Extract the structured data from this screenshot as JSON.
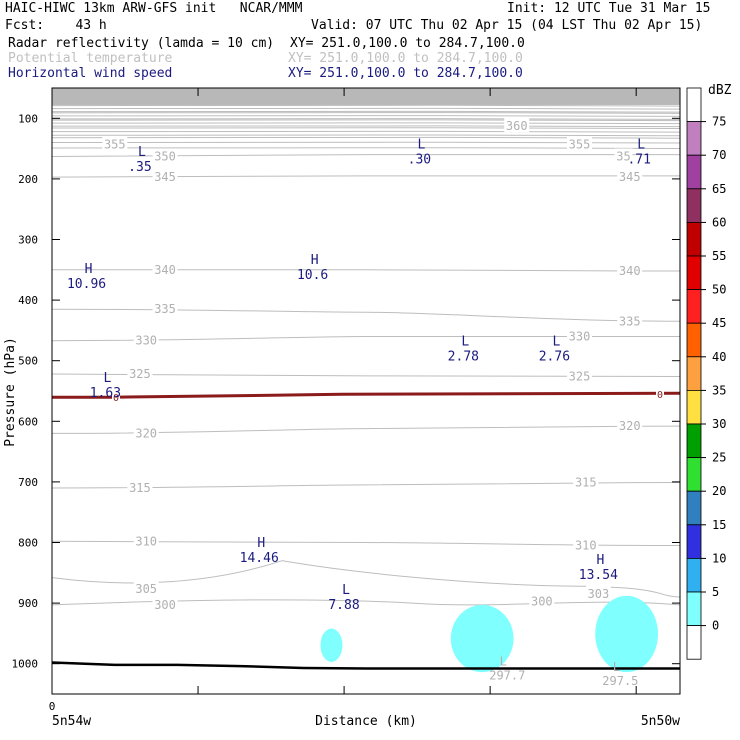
{
  "header": {
    "line1_left": "HAIC-HIWC 13km ARW-GFS init   NCAR/MMM",
    "line1_right": "Init: 12 UTC Tue 31 Mar 15",
    "line2_left": "Fcst:    43 h",
    "line2_right": "Valid: 07 UTC Thu 02 Apr 15 (04 LST Thu 02 Apr 15)",
    "fields": [
      {
        "name": "Radar reflectivity (lamda = 10 cm)",
        "xy": "XY= 251.0,100.0 to 284.7,100.0",
        "color": "#000000"
      },
      {
        "name": "Potential temperature",
        "xy": "XY= 251.0,100.0 to 284.7,100.0",
        "color": "#c0c0c0"
      },
      {
        "name": "Horizontal wind speed",
        "xy": "XY= 251.0,100.0 to 284.7,100.0",
        "color": "#1a1a80"
      }
    ]
  },
  "chart_data": {
    "type": "cross-section",
    "ylabel": "Pressure (hPa)",
    "xlabel": "Distance (km)",
    "y_ticks": [
      100,
      200,
      300,
      400,
      500,
      600,
      700,
      800,
      900,
      1000
    ],
    "ylim": [
      1050,
      50
    ],
    "x_left_label": "5n54w",
    "x_right_label": "5n50w",
    "x_zero_label": "0",
    "colorbar": {
      "unit": "dBZ",
      "levels": [
        "75",
        "70",
        "65",
        "60",
        "55",
        "50",
        "45",
        "40",
        "35",
        "30",
        "25",
        "20",
        "15",
        "10",
        "5",
        "0"
      ],
      "colors": [
        "#ffffff",
        "#c080c0",
        "#a040a0",
        "#903060",
        "#c00000",
        "#e00000",
        "#ff2020",
        "#ff6000",
        "#ffa040",
        "#ffe040",
        "#00a000",
        "#30e030",
        "#3080c0",
        "#3030e0",
        "#30b0f0",
        "#80ffff",
        "#ffffff"
      ]
    },
    "theta_labels": [
      {
        "text": "360",
        "x": 0.74,
        "p": 113
      },
      {
        "text": "355",
        "x": 0.1,
        "p": 143
      },
      {
        "text": "355",
        "x": 0.84,
        "p": 143
      },
      {
        "text": "350",
        "x": 0.18,
        "p": 163
      },
      {
        "text": "35",
        "x": 0.91,
        "p": 163
      },
      {
        "text": "345",
        "x": 0.18,
        "p": 197
      },
      {
        "text": "345",
        "x": 0.92,
        "p": 197
      },
      {
        "text": "340",
        "x": 0.18,
        "p": 350
      },
      {
        "text": "340",
        "x": 0.92,
        "p": 352
      },
      {
        "text": "335",
        "x": 0.18,
        "p": 415
      },
      {
        "text": "335",
        "x": 0.92,
        "p": 435
      },
      {
        "text": "330",
        "x": 0.15,
        "p": 467
      },
      {
        "text": "330",
        "x": 0.84,
        "p": 460
      },
      {
        "text": "325",
        "x": 0.14,
        "p": 522
      },
      {
        "text": "325",
        "x": 0.84,
        "p": 526
      },
      {
        "text": "320",
        "x": 0.15,
        "p": 620
      },
      {
        "text": "320",
        "x": 0.92,
        "p": 608
      },
      {
        "text": "315",
        "x": 0.14,
        "p": 710
      },
      {
        "text": "315",
        "x": 0.85,
        "p": 701
      },
      {
        "text": "310",
        "x": 0.15,
        "p": 798
      },
      {
        "text": "310",
        "x": 0.85,
        "p": 805
      },
      {
        "text": "305",
        "x": 0.15,
        "p": 877
      },
      {
        "text": "303",
        "x": 0.87,
        "p": 885
      },
      {
        "text": "300",
        "x": 0.18,
        "p": 903
      },
      {
        "text": "300",
        "x": 0.78,
        "p": 897
      }
    ],
    "wind_centers": [
      {
        "kind": "L",
        "value": ".35",
        "x": 0.14,
        "p": 172
      },
      {
        "kind": "L",
        "value": ".30",
        "x": 0.585,
        "p": 160
      },
      {
        "kind": "L",
        "value": ".71",
        "x": 0.935,
        "p": 160
      },
      {
        "kind": "H",
        "value": "10.96",
        "x": 0.055,
        "p": 365
      },
      {
        "kind": "H",
        "value": "10.6",
        "x": 0.415,
        "p": 350
      },
      {
        "kind": "L",
        "value": "2.78",
        "x": 0.655,
        "p": 485
      },
      {
        "kind": "L",
        "value": "2.76",
        "x": 0.8,
        "p": 485
      },
      {
        "kind": "L",
        "value": "1.63",
        "x": 0.085,
        "p": 545
      },
      {
        "kind": "H",
        "value": "14.46",
        "x": 0.33,
        "p": 817
      },
      {
        "kind": "H",
        "value": "13.54",
        "x": 0.87,
        "p": 845
      },
      {
        "kind": "L",
        "value": "7.88",
        "x": 0.465,
        "p": 895
      }
    ],
    "theta_min_labels": [
      {
        "kind": "L",
        "value": "297.7",
        "x": 0.725,
        "p": 1013
      },
      {
        "kind": "L",
        "value": "297.5",
        "x": 0.905,
        "p": 1022
      }
    ],
    "freezing_line_label": "0",
    "freezing_level_p": 557,
    "surface_p": [
      998,
      1002,
      1002,
      1004,
      1007,
      1008,
      1008,
      1008,
      1008,
      1008,
      1008
    ],
    "echo_cells": [
      {
        "x": 0.445,
        "p_top": 942,
        "p_bot": 997,
        "w": 0.035
      },
      {
        "x": 0.685,
        "p_top": 903,
        "p_bot": 1014,
        "w": 0.1
      },
      {
        "x": 0.915,
        "p_top": 888,
        "p_bot": 1014,
        "w": 0.1
      }
    ]
  }
}
